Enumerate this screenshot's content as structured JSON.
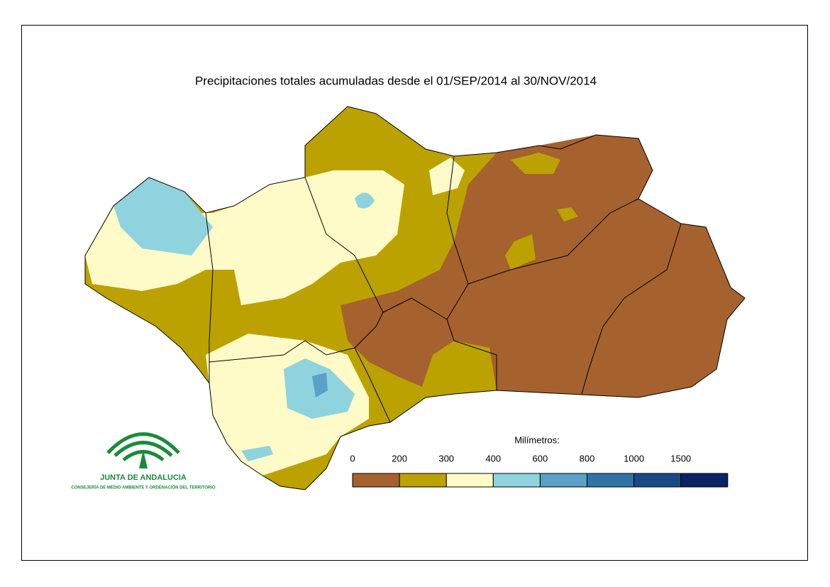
{
  "title": "Precipitaciones totales acumuladas desde el 01/SEP/2014 al 30/NOV/2014",
  "legend": {
    "title": "Milímetros:",
    "breaks": [
      0,
      200,
      300,
      400,
      600,
      800,
      1000,
      1500
    ],
    "colors": [
      "#a5622f",
      "#bba200",
      "#fefbc8",
      "#8fd3df",
      "#5aa0c8",
      "#2f74a6",
      "#1a4a86",
      "#0a2363"
    ]
  },
  "logo": {
    "name": "JUNTA DE ANDALUCIA",
    "department": "CONSEJERÍA DE MEDIO AMBIENTE Y ORDENACIÓN DEL TERRITORIO"
  }
}
